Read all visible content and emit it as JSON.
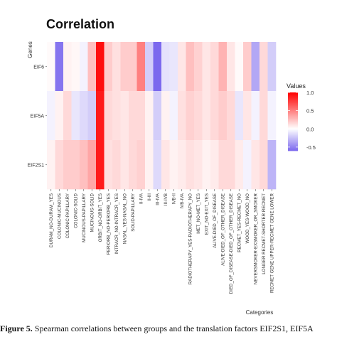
{
  "chart_data": {
    "type": "heatmap",
    "title": "Correlation",
    "ylabel": "Genes",
    "xlabel": "Categories",
    "legend": {
      "title": "Values",
      "ticks": [
        1.0,
        0.5,
        0.0,
        -0.5
      ],
      "tick_labels": [
        "1.0",
        "0.5",
        "0.0",
        "-0.5"
      ],
      "range": [
        -0.6,
        1.0
      ],
      "position": "right"
    },
    "rows": [
      "EIF6",
      "EIF5A",
      "EIF2S1"
    ],
    "categories": [
      "DURAM_NO-DURAM_YES",
      "COLONIC-MUCINOUS",
      "COLONIC-PAPILLARY",
      "COLONIC-SOLID",
      "MUCINOUS-PAPILLARY",
      "MUCINOUS-SOLID",
      "ORBIT_NO-ORBIT_YES",
      "PERIORB_NO-PERIORB_YES",
      "INTRACR_NO-INTRACR_YES",
      "NASAL_YES-NASAL_NO",
      "SOLID-PAPILLARY",
      "II-IVA",
      "II-III",
      "III-IVA",
      "III-IVB",
      "IVB-II",
      "IVB-IVA",
      "RADIOTHERAPY_YES-RADIOTHERAPY_NO",
      "MET_NO-MET_YES",
      "EXIT_NO-EXIT_YES",
      "ALIVE-DIED_OF_DISEASE",
      "ALIVE-DIED_OF_OTHER_DISEASE",
      "DIED_OF_DISEASE-DIED_OF_OTHER_DISEASE",
      "RECMET_YES-RECMET_NO",
      "WOOD_YES-WOOD_NO",
      "NEVERSMOKER-EXSMOKER_OR_SMOKER",
      "LONGER RECMET-SHORTER RECMET",
      "RECMET GENE UPPER-RECMET GENE LOWER"
    ],
    "values": [
      [
        0.02,
        -0.55,
        0.05,
        0.03,
        -0.05,
        0.25,
        0.95,
        0.2,
        0.12,
        0.2,
        0.2,
        0.5,
        -0.2,
        -0.6,
        -0.12,
        -0.1,
        0.1,
        0.25,
        0.18,
        0.1,
        0.15,
        0.3,
        0.1,
        0.02,
        0.2,
        -0.35,
        0.15,
        -0.2
      ],
      [
        -0.05,
        0.05,
        0.15,
        -0.1,
        -0.15,
        -0.2,
        0.9,
        0.15,
        0.12,
        0.1,
        0.15,
        0.15,
        0.05,
        -0.2,
        0.05,
        -0.05,
        0.12,
        0.18,
        0.15,
        0.1,
        0.15,
        0.2,
        0.15,
        -0.1,
        0.1,
        -0.05,
        0.15,
        -0.05
      ],
      [
        0.05,
        0.15,
        0.2,
        0.2,
        0.25,
        0.35,
        0.9,
        0.12,
        0.15,
        0.1,
        0.15,
        0.18,
        0.05,
        -0.15,
        0.1,
        0.05,
        0.08,
        0.12,
        0.1,
        0.05,
        0.08,
        0.15,
        0.15,
        0.08,
        -0.05,
        0.1,
        0.15,
        -0.3
      ]
    ],
    "colors": {
      "low": "#7b68ee",
      "mid": "#ffffff",
      "high": "#ff0000"
    }
  },
  "caption": {
    "label": "Figure 5.",
    "text": "Spearman correlations between groups and the translation factors EIF2S1, EIF5A"
  }
}
